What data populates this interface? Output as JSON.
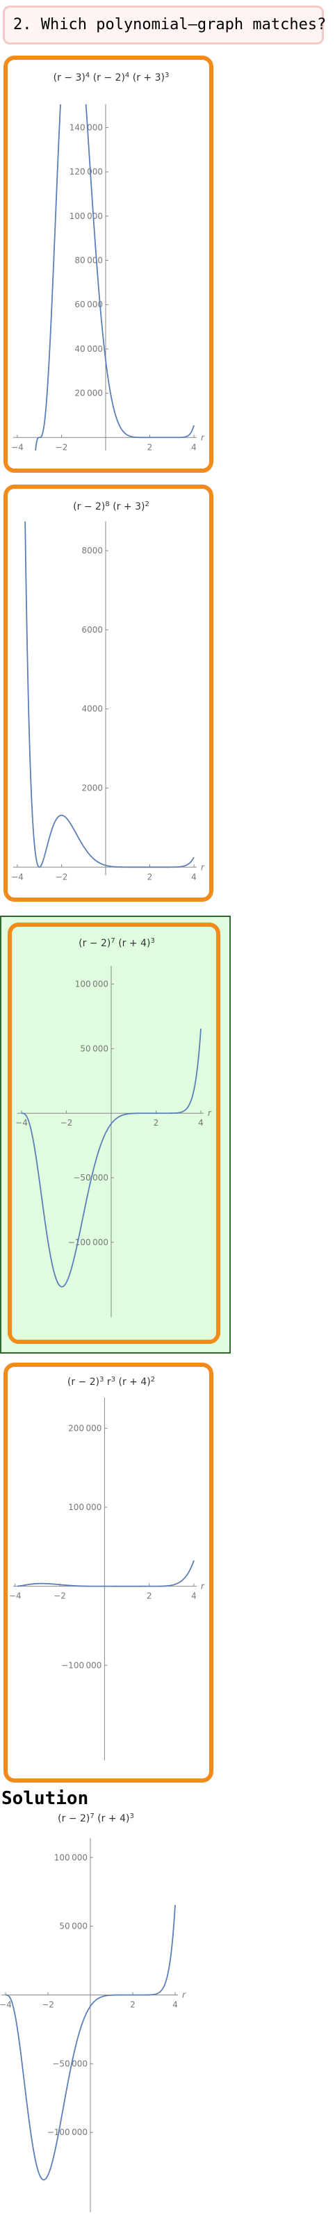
{
  "question": {
    "text": "2. Which polynomial–graph matches?"
  },
  "solution_label": "Solution",
  "selected_option": 3,
  "chart_data": [
    {
      "id": "option-1",
      "type": "line",
      "title": "(r − 3)⁴ (r − 2)⁴ (r + 3)³",
      "title_parts": [
        "(r − 3)",
        "4",
        " (r − 2)",
        "4",
        " (r + 3)",
        "3"
      ],
      "xlabel": "r",
      "expr": {
        "factors": [
          [
            3,
            4
          ],
          [
            2,
            4
          ],
          [
            -3,
            3
          ]
        ],
        "scale": 1
      },
      "xlim": [
        -4,
        4
      ],
      "ylim": [
        -4000,
        148000
      ],
      "x_ticks": [
        -4,
        -2,
        2,
        4
      ],
      "y_ticks": [
        20000,
        40000,
        60000,
        80000,
        100000,
        120000,
        140000
      ],
      "x_tick_labels": [
        "−4",
        "−2",
        "2",
        "4"
      ],
      "y_tick_labels": [
        "20 000",
        "40 000",
        "60 000",
        "80 000",
        "100 000",
        "120 000",
        "140 000"
      ]
    },
    {
      "id": "option-2",
      "type": "line",
      "title": "(r − 2)⁸ (r + 3)²",
      "title_parts": [
        "(r − 2)",
        "8",
        " (r + 3)",
        "2"
      ],
      "xlabel": "r",
      "expr": {
        "factors": [
          [
            2,
            8
          ],
          [
            -3,
            2
          ]
        ],
        "scale": 0.02
      },
      "xlim": [
        -4,
        4
      ],
      "ylim": [
        -100,
        8600
      ],
      "x_ticks": [
        -4,
        -2,
        2,
        4
      ],
      "y_ticks": [
        2000,
        4000,
        6000,
        8000
      ],
      "x_tick_labels": [
        "−4",
        "−2",
        "2",
        "4"
      ],
      "y_tick_labels": [
        "2000",
        "4000",
        "6000",
        "8000"
      ]
    },
    {
      "id": "option-3",
      "type": "line",
      "title": "(r − 2)⁷ (r + 4)³",
      "title_parts": [
        "(r − 2)",
        "7",
        " (r + 4)",
        "3"
      ],
      "xlabel": "r",
      "expr": {
        "factors": [
          [
            2,
            7
          ],
          [
            -4,
            3
          ]
        ],
        "scale": 1
      },
      "xlim": [
        -4,
        4
      ],
      "ylim": [
        -155000,
        110000
      ],
      "x_ticks": [
        -4,
        -2,
        2,
        4
      ],
      "y_ticks": [
        -100000,
        -50000,
        50000,
        100000
      ],
      "x_tick_labels": [
        "−4",
        "−2",
        "2",
        "4"
      ],
      "y_tick_labels": [
        "−100 000",
        "−50 000",
        "50 000",
        "100 000"
      ]
    },
    {
      "id": "option-4",
      "type": "line",
      "title": "(r − 2)³ r³ (r + 4)²",
      "title_parts": [
        "(r − 2)",
        "3",
        " r",
        "3",
        " (r + 4)",
        "2"
      ],
      "xlabel": "r",
      "expr": {
        "factors": [
          [
            2,
            3
          ],
          [
            0,
            3
          ],
          [
            -4,
            2
          ]
        ],
        "scale": 1
      },
      "xlim": [
        -3.9,
        4
      ],
      "ylim": [
        -215000,
        232000
      ],
      "x_ticks": [
        -4,
        -2,
        2,
        4
      ],
      "y_ticks": [
        -100000,
        100000,
        200000
      ],
      "x_tick_labels": [
        "−4",
        "−2",
        "2",
        "4"
      ],
      "y_tick_labels": [
        "−100 000",
        "100 000",
        "200 000"
      ]
    },
    {
      "id": "solution",
      "type": "line",
      "title": "(r − 2)⁷ (r + 4)³",
      "title_parts": [
        "(r − 2)",
        "7",
        " (r + 4)",
        "3"
      ],
      "xlabel": "r",
      "expr": {
        "factors": [
          [
            2,
            7
          ],
          [
            -4,
            3
          ]
        ],
        "scale": 1
      },
      "xlim": [
        -4,
        4
      ],
      "ylim": [
        -155000,
        110000
      ],
      "x_ticks": [
        -4,
        -2,
        2,
        4
      ],
      "y_ticks": [
        -100000,
        -50000,
        50000,
        100000
      ],
      "x_tick_labels": [
        "−4",
        "−2",
        "2",
        "4"
      ],
      "y_tick_labels": [
        "−100 000",
        "−50 000",
        "50 000",
        "100 000"
      ]
    }
  ],
  "colors": {
    "curve": "#5b7fb8",
    "axis": "#888888",
    "tick_label": "#777777",
    "card_border": "#f28a1c",
    "selected_fill": "#e0fde0",
    "selected_border": "#2f6b2f"
  }
}
